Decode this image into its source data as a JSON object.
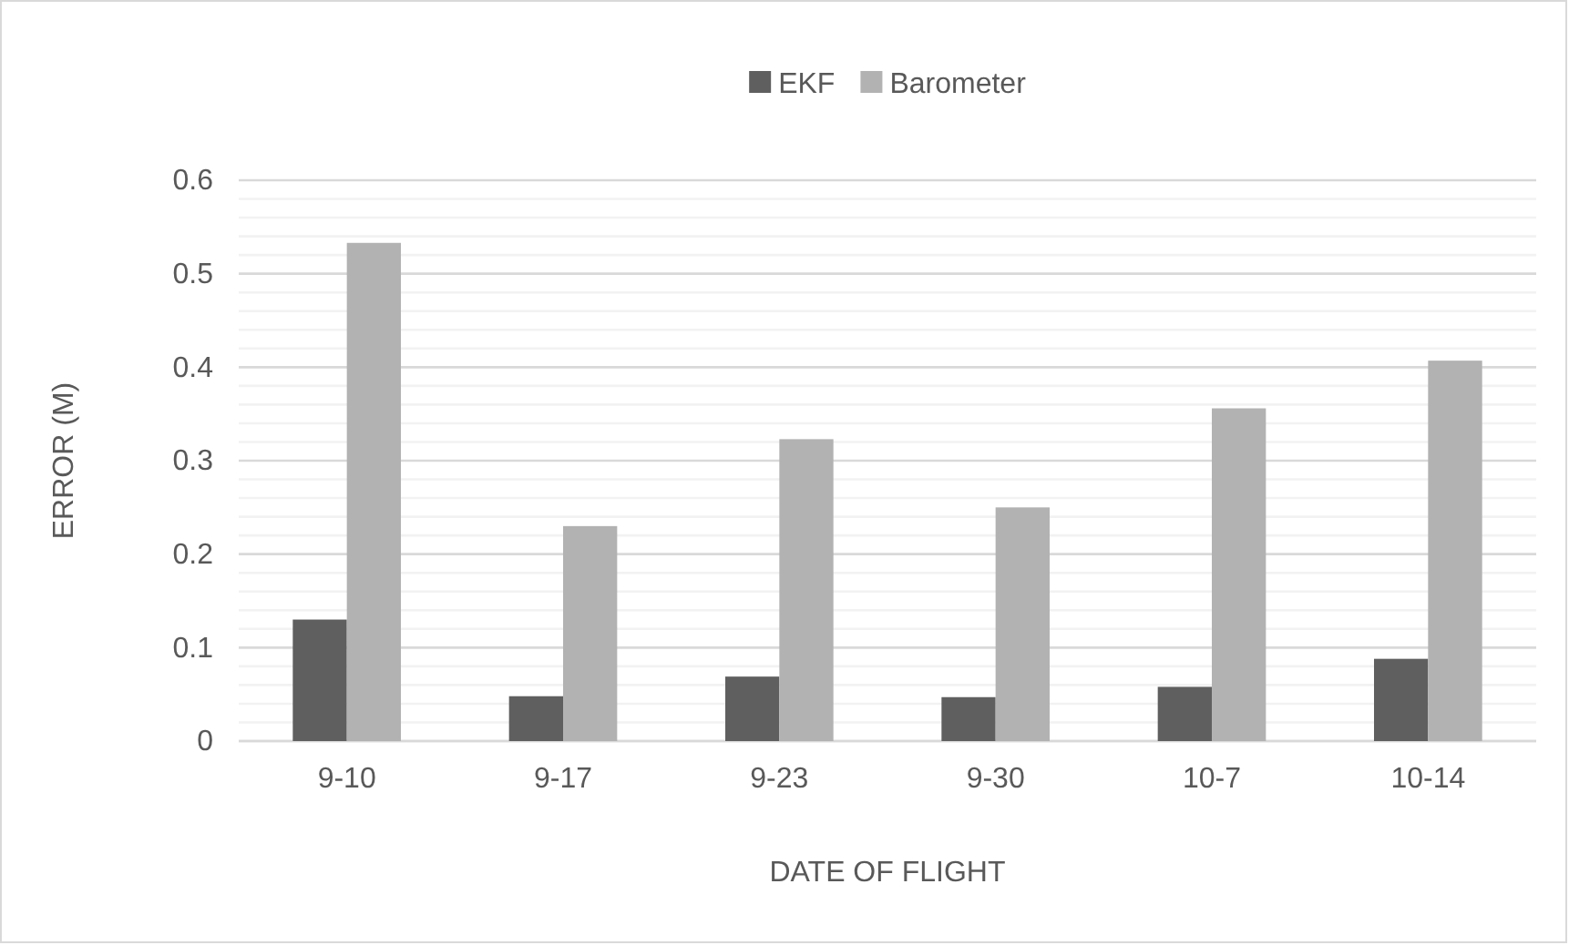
{
  "chart_data": {
    "type": "bar",
    "xlabel": "DATE OF FLIGHT",
    "ylabel": "ERROR (M)",
    "categories": [
      "9-10",
      "9-17",
      "9-23",
      "9-30",
      "10-7",
      "10-14"
    ],
    "series": [
      {
        "name": "EKF",
        "color": "#5f5f5f",
        "values": [
          0.13,
          0.048,
          0.069,
          0.047,
          0.058,
          0.088
        ]
      },
      {
        "name": "Barometer",
        "color": "#b2b2b2",
        "values": [
          0.533,
          0.23,
          0.323,
          0.25,
          0.356,
          0.407
        ]
      }
    ],
    "ylim": [
      0,
      0.6
    ],
    "yticks": [
      0,
      {
        "value": 0.02,
        "label": null
      },
      {
        "value": 0.04,
        "label": null
      },
      {
        "value": 0.06,
        "label": null
      },
      {
        "value": 0.08,
        "label": null
      },
      0.1,
      {
        "value": 0.12,
        "label": null
      },
      {
        "value": 0.14,
        "label": null
      },
      {
        "value": 0.16,
        "label": null
      },
      {
        "value": 0.18,
        "label": null
      },
      0.2,
      {
        "value": 0.22,
        "label": null
      },
      {
        "value": 0.24,
        "label": null
      },
      {
        "value": 0.26,
        "label": null
      },
      {
        "value": 0.28,
        "label": null
      },
      0.3,
      {
        "value": 0.32,
        "label": null
      },
      {
        "value": 0.34,
        "label": null
      },
      {
        "value": 0.36,
        "label": null
      },
      {
        "value": 0.38,
        "label": null
      },
      0.4,
      {
        "value": 0.42,
        "label": null
      },
      {
        "value": 0.44,
        "label": null
      },
      {
        "value": 0.46,
        "label": null
      },
      {
        "value": 0.48,
        "label": null
      },
      0.5,
      {
        "value": 0.52,
        "label": null
      },
      {
        "value": 0.54,
        "label": null
      },
      {
        "value": 0.56,
        "label": null
      },
      {
        "value": 0.58,
        "label": null
      },
      0.6
    ],
    "grid": true,
    "legend": "top"
  }
}
